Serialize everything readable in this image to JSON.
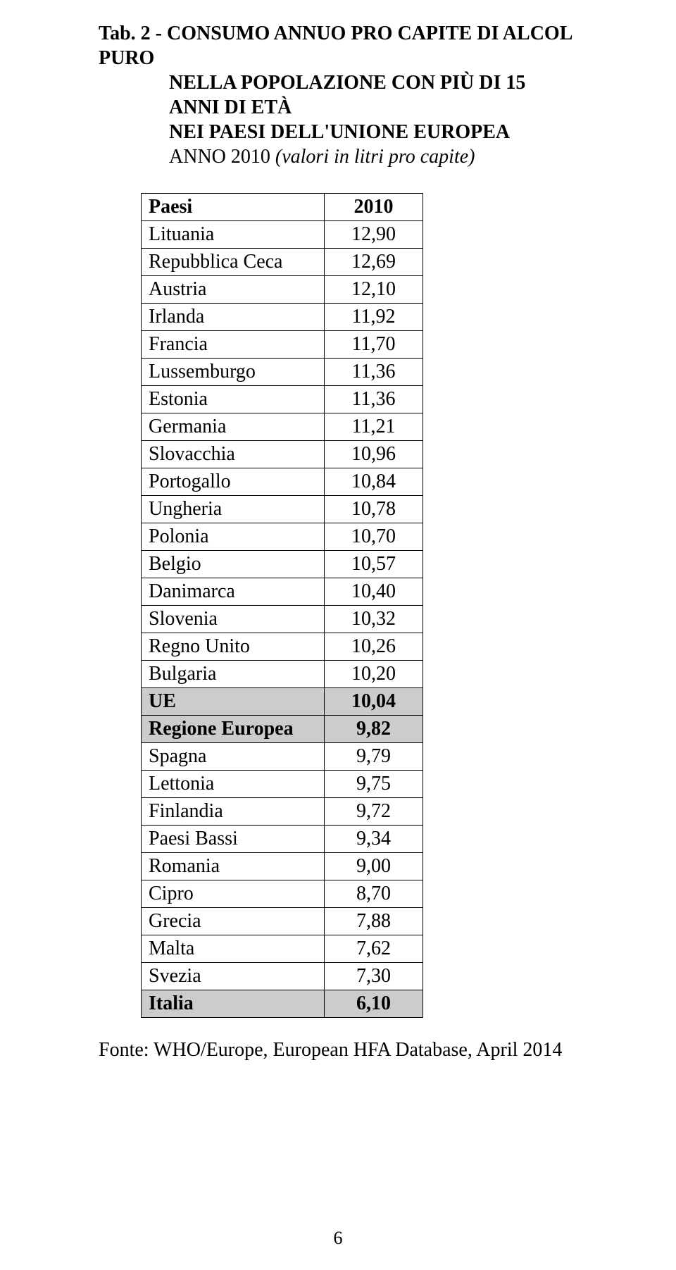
{
  "heading": {
    "line1": "Tab. 2 - CONSUMO ANNUO PRO CAPITE DI ALCOL PURO",
    "line2": "NELLA POPOLAZIONE CON PIÙ DI 15 ANNI DI ETÀ",
    "line3": "NEI PAESI DELL'UNIONE EUROPEA",
    "line4_year": "ANNO 2010 ",
    "line4_ital": "(valori in litri pro capite)"
  },
  "table": {
    "header": {
      "col1": "Paesi",
      "col2": "2010"
    },
    "header_background": "#ffffff",
    "highlight_background": "#cccccc",
    "border_color": "#000000",
    "font_family": "Times New Roman",
    "font_size_pt": 20,
    "rows": [
      {
        "country": "Lituania",
        "value": "12,90",
        "highlight": false
      },
      {
        "country": "Repubblica Ceca",
        "value": "12,69",
        "highlight": false
      },
      {
        "country": "Austria",
        "value": "12,10",
        "highlight": false
      },
      {
        "country": "Irlanda",
        "value": "11,92",
        "highlight": false
      },
      {
        "country": "Francia",
        "value": "11,70",
        "highlight": false
      },
      {
        "country": "Lussemburgo",
        "value": "11,36",
        "highlight": false
      },
      {
        "country": "Estonia",
        "value": "11,36",
        "highlight": false
      },
      {
        "country": "Germania",
        "value": "11,21",
        "highlight": false
      },
      {
        "country": "Slovacchia",
        "value": "10,96",
        "highlight": false
      },
      {
        "country": "Portogallo",
        "value": "10,84",
        "highlight": false
      },
      {
        "country": "Ungheria",
        "value": "10,78",
        "highlight": false
      },
      {
        "country": "Polonia",
        "value": "10,70",
        "highlight": false
      },
      {
        "country": "Belgio",
        "value": "10,57",
        "highlight": false
      },
      {
        "country": "Danimarca",
        "value": "10,40",
        "highlight": false
      },
      {
        "country": "Slovenia",
        "value": "10,32",
        "highlight": false
      },
      {
        "country": "Regno Unito",
        "value": "10,26",
        "highlight": false
      },
      {
        "country": "Bulgaria",
        "value": "10,20",
        "highlight": false
      },
      {
        "country": "UE",
        "value": "10,04",
        "highlight": true
      },
      {
        "country": "Regione Europea",
        "value": "9,82",
        "highlight": true
      },
      {
        "country": "Spagna",
        "value": "9,79",
        "highlight": false
      },
      {
        "country": "Lettonia",
        "value": "9,75",
        "highlight": false
      },
      {
        "country": "Finlandia",
        "value": "9,72",
        "highlight": false
      },
      {
        "country": "Paesi Bassi",
        "value": "9,34",
        "highlight": false
      },
      {
        "country": "Romania",
        "value": "9,00",
        "highlight": false
      },
      {
        "country": "Cipro",
        "value": "8,70",
        "highlight": false
      },
      {
        "country": "Grecia",
        "value": "7,88",
        "highlight": false
      },
      {
        "country": "Malta",
        "value": "7,62",
        "highlight": false
      },
      {
        "country": "Svezia",
        "value": "7,30",
        "highlight": false
      },
      {
        "country": "Italia",
        "value": "6,10",
        "highlight": true
      }
    ]
  },
  "source": "Fonte: WHO/Europe, European HFA Database, April 2014",
  "page_number": "6"
}
